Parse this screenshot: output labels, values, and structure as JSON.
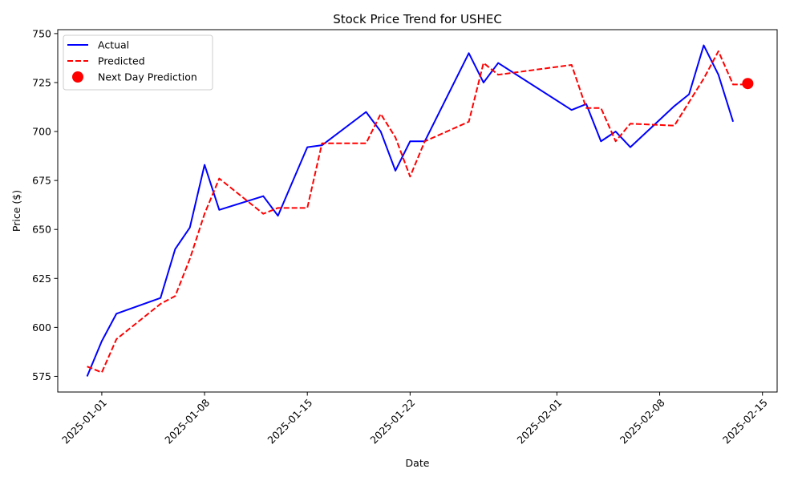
{
  "chart_data": {
    "type": "line",
    "title": "Stock Price Trend for USHEC",
    "xlabel": "Date",
    "ylabel": "Price ($)",
    "x_ticks": [
      "2025-01-01",
      "2025-01-08",
      "2025-01-15",
      "2025-01-22",
      "2025-02-01",
      "2025-02-08",
      "2025-02-15"
    ],
    "y_ticks": [
      575,
      600,
      625,
      650,
      675,
      700,
      725,
      750
    ],
    "xlim": [
      "2024-12-29",
      "2025-02-16"
    ],
    "ylim": [
      567,
      752
    ],
    "grid": false,
    "legend_position": "top-left",
    "series": [
      {
        "name": "Actual",
        "style": "solid",
        "color": "#0000ff",
        "points": [
          [
            "2024-12-31",
            575
          ],
          [
            "2025-01-01",
            593
          ],
          [
            "2025-01-02",
            607
          ],
          [
            "2025-01-05",
            615
          ],
          [
            "2025-01-06",
            640
          ],
          [
            "2025-01-07",
            651
          ],
          [
            "2025-01-08",
            683
          ],
          [
            "2025-01-09",
            660
          ],
          [
            "2025-01-12",
            667
          ],
          [
            "2025-01-13",
            657
          ],
          [
            "2025-01-15",
            692
          ],
          [
            "2025-01-16",
            693
          ],
          [
            "2025-01-19",
            710
          ],
          [
            "2025-01-20",
            700
          ],
          [
            "2025-01-21",
            680
          ],
          [
            "2025-01-22",
            695
          ],
          [
            "2025-01-23",
            695
          ],
          [
            "2025-01-26",
            740
          ],
          [
            "2025-01-27",
            725
          ],
          [
            "2025-01-28",
            735
          ],
          [
            "2025-02-02",
            711
          ],
          [
            "2025-02-03",
            714
          ],
          [
            "2025-02-04",
            695
          ],
          [
            "2025-02-05",
            700
          ],
          [
            "2025-02-06",
            692
          ],
          [
            "2025-02-09",
            713
          ],
          [
            "2025-02-10",
            719
          ],
          [
            "2025-02-11",
            744
          ],
          [
            "2025-02-12",
            729
          ],
          [
            "2025-02-13",
            705
          ]
        ]
      },
      {
        "name": "Predicted",
        "style": "dashed",
        "color": "#ff0000",
        "points": [
          [
            "2024-12-31",
            580
          ],
          [
            "2025-01-01",
            577
          ],
          [
            "2025-01-02",
            594
          ],
          [
            "2025-01-05",
            612
          ],
          [
            "2025-01-06",
            616
          ],
          [
            "2025-01-07",
            635
          ],
          [
            "2025-01-08",
            658
          ],
          [
            "2025-01-09",
            676
          ],
          [
            "2025-01-12",
            658
          ],
          [
            "2025-01-13",
            661
          ],
          [
            "2025-01-15",
            661
          ],
          [
            "2025-01-16",
            694
          ],
          [
            "2025-01-19",
            694
          ],
          [
            "2025-01-20",
            709
          ],
          [
            "2025-01-21",
            697
          ],
          [
            "2025-01-22",
            677
          ],
          [
            "2025-01-23",
            695
          ],
          [
            "2025-01-26",
            705
          ],
          [
            "2025-01-27",
            735
          ],
          [
            "2025-01-28",
            729
          ],
          [
            "2025-02-02",
            734
          ],
          [
            "2025-02-03",
            712
          ],
          [
            "2025-02-04",
            712
          ],
          [
            "2025-02-05",
            695
          ],
          [
            "2025-02-06",
            704
          ],
          [
            "2025-02-09",
            703
          ],
          [
            "2025-02-10",
            715
          ],
          [
            "2025-02-11",
            727
          ],
          [
            "2025-02-12",
            741
          ],
          [
            "2025-02-13",
            724
          ],
          [
            "2025-02-14",
            724
          ]
        ]
      },
      {
        "name": "Next Day Prediction",
        "style": "marker",
        "color": "#ff0000",
        "points": [
          [
            "2025-02-14",
            724.5
          ]
        ]
      }
    ]
  }
}
